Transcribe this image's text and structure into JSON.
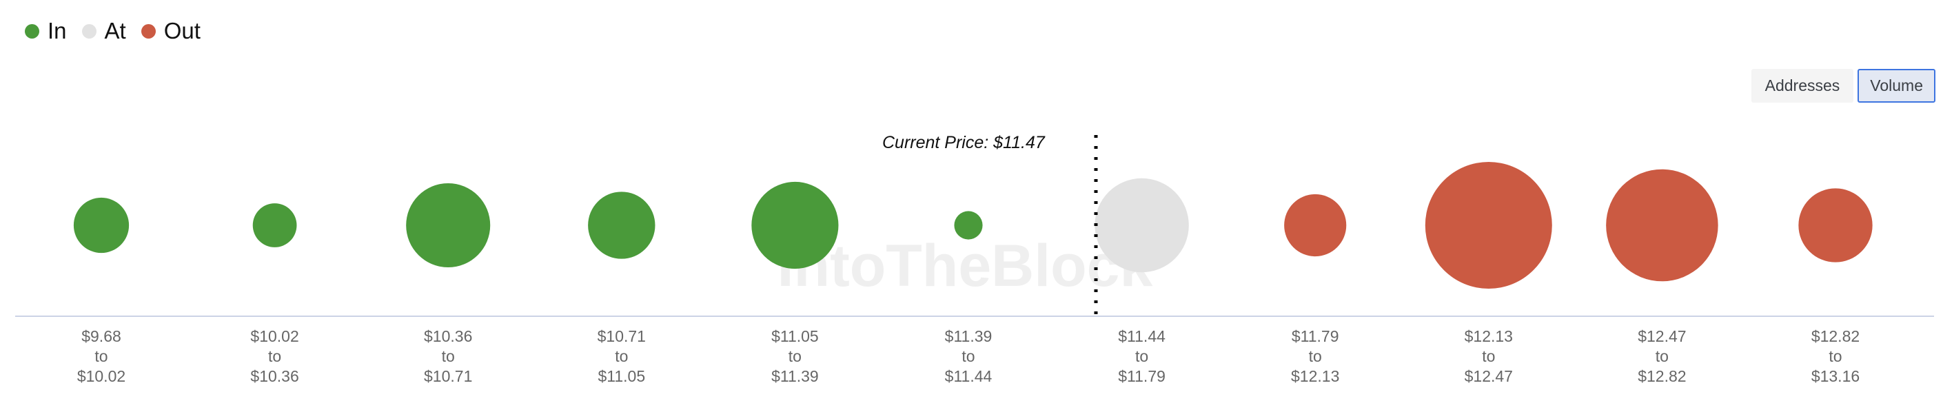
{
  "legend": [
    {
      "label": "In",
      "color": "#4a9a3a"
    },
    {
      "label": "At",
      "color": "#e2e2e2"
    },
    {
      "label": "Out",
      "color": "#cb5a42"
    }
  ],
  "toggle": {
    "options": [
      "Addresses",
      "Volume"
    ],
    "selected": "Volume"
  },
  "watermark": "IntoTheBlock",
  "chart_data": {
    "type": "bubble",
    "current_price_label": "Current Price: $11.47",
    "current_price": 11.47,
    "size_measure": "Volume",
    "size_note_relative": true,
    "categories": [
      {
        "from": "$9.68",
        "to": "$10.02",
        "status": "In",
        "relative_volume": 0.19
      },
      {
        "from": "$10.02",
        "to": "$10.36",
        "status": "In",
        "relative_volume": 0.12
      },
      {
        "from": "$10.36",
        "to": "$10.71",
        "status": "In",
        "relative_volume": 0.44
      },
      {
        "from": "$10.71",
        "to": "$11.05",
        "status": "In",
        "relative_volume": 0.28
      },
      {
        "from": "$11.05",
        "to": "$11.39",
        "status": "In",
        "relative_volume": 0.47
      },
      {
        "from": "$11.39",
        "to": "$11.44",
        "status": "In",
        "relative_volume": 0.05
      },
      {
        "from": "$11.44",
        "to": "$11.79",
        "status": "At",
        "relative_volume": 0.55
      },
      {
        "from": "$11.79",
        "to": "$12.13",
        "status": "Out",
        "relative_volume": 0.24
      },
      {
        "from": "$12.13",
        "to": "$12.47",
        "status": "Out",
        "relative_volume": 1.0
      },
      {
        "from": "$12.47",
        "to": "$12.82",
        "status": "Out",
        "relative_volume": 0.78
      },
      {
        "from": "$12.82",
        "to": "$13.16",
        "status": "Out",
        "relative_volume": 0.34
      }
    ],
    "separator_word": "to",
    "grid": false,
    "legend_position": "top-left"
  }
}
